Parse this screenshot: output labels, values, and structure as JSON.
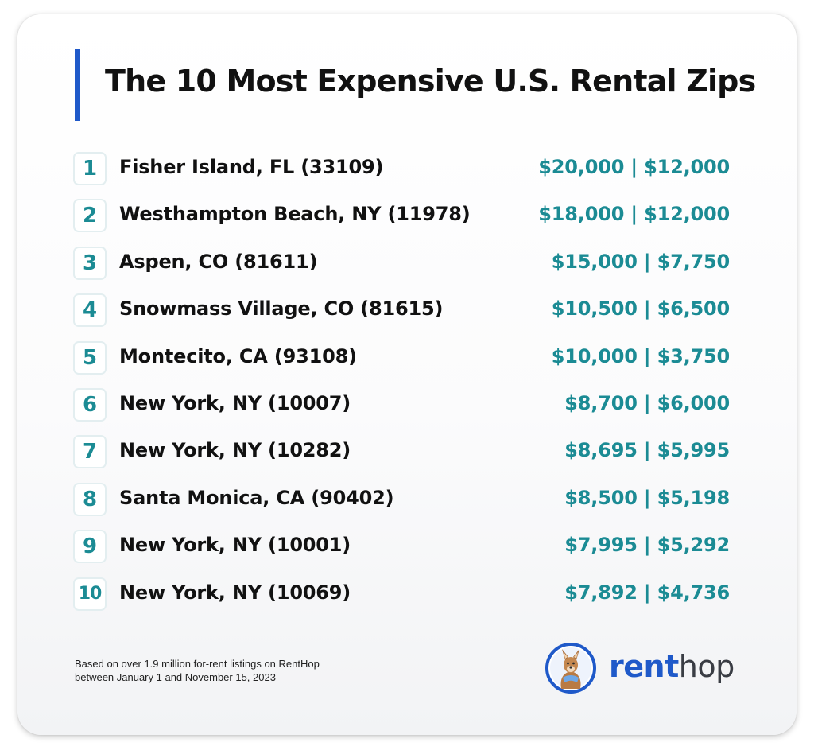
{
  "title": "The 10 Most Expensive U.S. Rental Zips",
  "colors": {
    "accent_bar": "#1f59c9",
    "price_text": "#1b8b94",
    "rank_text": "#1b8b94",
    "title_text": "#111111"
  },
  "rankings": [
    {
      "rank": "1",
      "place": "Fisher Island, FL (33109)",
      "price": "$20,000 | $12,000"
    },
    {
      "rank": "2",
      "place": "Westhampton Beach, NY (11978)",
      "price": "$18,000 | $12,000"
    },
    {
      "rank": "3",
      "place": "Aspen, CO (81611)",
      "price": "$15,000 | $7,750"
    },
    {
      "rank": "4",
      "place": "Snowmass Village, CO (81615)",
      "price": "$10,500 | $6,500"
    },
    {
      "rank": "5",
      "place": "Montecito, CA (93108)",
      "price": "$10,000 | $3,750"
    },
    {
      "rank": "6",
      "place": "New York, NY (10007)",
      "price": "$8,700 | $6,000"
    },
    {
      "rank": "7",
      "place": "New York, NY (10282)",
      "price": "$8,695 | $5,995"
    },
    {
      "rank": "8",
      "place": "Santa Monica, CA (90402)",
      "price": "$8,500 | $5,198"
    },
    {
      "rank": "9",
      "place": "New York, NY (10001)",
      "price": "$7,995 | $5,292"
    },
    {
      "rank": "10",
      "place": "New York, NY (10069)",
      "price": "$7,892 | $4,736"
    }
  ],
  "footnote": {
    "line1": "Based on over 1.9 million for-rent listings on RentHop",
    "line2": "between January 1 and November 15, 2023"
  },
  "brand": {
    "part1": "rent",
    "part2": "hop",
    "icon": "kangaroo-logo-icon"
  }
}
